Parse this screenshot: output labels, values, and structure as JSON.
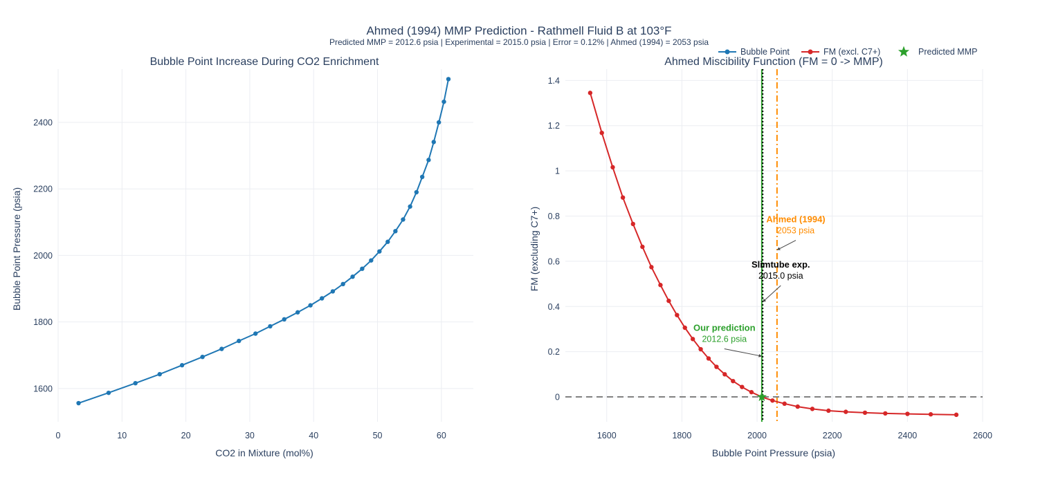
{
  "title": "Ahmed (1994) MMP Prediction - Rathmell Fluid B at 103°F",
  "subtitle": "Predicted MMP = 2012.6 psia  |  Experimental = 2015.0 psia  |  Error = 0.12%  |  Ahmed (1994) = 2053 psia",
  "legend": {
    "items": [
      {
        "label": "Bubble Point",
        "color": "#1f77b4",
        "marker": "line-circle"
      },
      {
        "label": "FM (excl. C7+)",
        "color": "#d62728",
        "marker": "line-circle"
      },
      {
        "label": "Predicted MMP",
        "color": "#2ca02c",
        "marker": "star"
      }
    ]
  },
  "chart_data": [
    {
      "type": "line",
      "title": "Bubble Point Increase During CO2 Enrichment",
      "xlabel": "CO2 in Mixture (mol%)",
      "ylabel": "Bubble Point Pressure (psia)",
      "xlim": [
        0,
        65
      ],
      "ylim": [
        1500,
        2560
      ],
      "xticks": [
        0,
        10,
        20,
        30,
        40,
        50,
        60
      ],
      "yticks": [
        1600,
        1800,
        2000,
        2200,
        2400
      ],
      "grid": true,
      "series": [
        {
          "name": "Bubble Point",
          "color": "#1f77b4",
          "x": [
            3.2,
            7.9,
            12.1,
            15.9,
            19.4,
            22.6,
            25.6,
            28.3,
            30.9,
            33.2,
            35.4,
            37.5,
            39.5,
            41.3,
            43.0,
            44.6,
            46.1,
            47.6,
            49.0,
            50.3,
            51.6,
            52.8,
            54.0,
            55.1,
            56.1,
            57.0,
            58.0,
            58.8,
            59.6,
            60.4,
            61.1
          ],
          "y": [
            1556,
            1587,
            1616,
            1643,
            1670,
            1695,
            1719,
            1743,
            1765,
            1787,
            1808,
            1829,
            1850,
            1871,
            1892,
            1914,
            1936,
            1960,
            1985,
            2012,
            2041,
            2073,
            2108,
            2147,
            2190,
            2236,
            2287,
            2341,
            2400,
            2462,
            2530
          ]
        }
      ]
    },
    {
      "type": "line",
      "title": "Ahmed Miscibility Function  (FM = 0 -> MMP)",
      "xlabel": "Bubble Point Pressure (psia)",
      "ylabel": "FM (excluding C7+)",
      "xlim": [
        1490,
        2600
      ],
      "ylim": [
        -0.11,
        1.45
      ],
      "xticks": [
        1600,
        1800,
        2000,
        2200,
        2400,
        2600
      ],
      "yticks": [
        0,
        0.2,
        0.4,
        0.6,
        0.8,
        1,
        1.2,
        1.4
      ],
      "grid": true,
      "series": [
        {
          "name": "FM (excl. C7+)",
          "color": "#d62728",
          "x": [
            1556,
            1587,
            1616,
            1643,
            1670,
            1695,
            1719,
            1743,
            1765,
            1787,
            1808,
            1829,
            1850,
            1871,
            1892,
            1914,
            1936,
            1960,
            1985,
            2012,
            2041,
            2073,
            2108,
            2147,
            2190,
            2236,
            2287,
            2341,
            2400,
            2462,
            2530
          ],
          "y": [
            1.345,
            1.168,
            1.016,
            0.882,
            0.765,
            0.664,
            0.574,
            0.495,
            0.425,
            0.362,
            0.306,
            0.256,
            0.211,
            0.17,
            0.133,
            0.1,
            0.07,
            0.044,
            0.021,
            0.0,
            -0.016,
            -0.03,
            -0.043,
            -0.053,
            -0.061,
            -0.066,
            -0.07,
            -0.073,
            -0.075,
            -0.077,
            -0.079
          ]
        },
        {
          "name": "Predicted MMP",
          "color": "#2ca02c",
          "marker": "star",
          "x": [
            2012.6
          ],
          "y": [
            0
          ]
        }
      ],
      "reference_lines": [
        {
          "orientation": "horizontal",
          "value": 0,
          "style": "dashed",
          "color": "#808080"
        },
        {
          "orientation": "vertical",
          "value": 2012.6,
          "style": "solid",
          "color": "#2ca02c"
        },
        {
          "orientation": "vertical",
          "value": 2015.0,
          "style": "dotted",
          "color": "#000000"
        },
        {
          "orientation": "vertical",
          "value": 2053,
          "style": "dashdot",
          "color": "#ff8c00"
        }
      ],
      "annotations": [
        {
          "title": "Ahmed (1994)",
          "text": "2053 psia",
          "color": "#ff8c00",
          "x": 2053,
          "y": 0.65,
          "label_x": 2103,
          "label_y": 0.76
        },
        {
          "title": "Slimtube exp.",
          "text": "2015.0 psia",
          "color": "#000000",
          "x": 2015.0,
          "y": 0.42,
          "label_x": 2063,
          "label_y": 0.56
        },
        {
          "title": "Our prediction",
          "text": "2012.6 psia",
          "color": "#2ca02c",
          "x": 2012.6,
          "y": 0.18,
          "label_x": 1913,
          "label_y": 0.28
        }
      ]
    }
  ]
}
